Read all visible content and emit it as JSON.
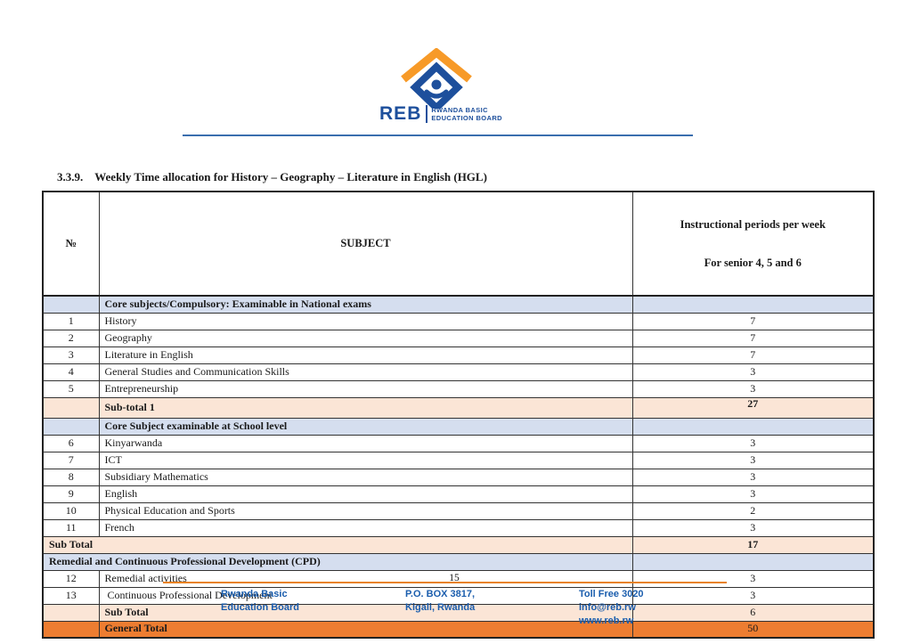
{
  "logo": {
    "acronym": "REB",
    "org_line1": "RWANDA BASIC",
    "org_line2": "EDUCATION BOARD",
    "colors": {
      "blue": "#1d4f9c",
      "orange": "#f79a28"
    }
  },
  "title": {
    "number": "3.3.9.",
    "text": "Weekly Time allocation for History – Geography – Literature in English (HGL)"
  },
  "table": {
    "headers": {
      "no": "№",
      "subject": "SUBJECT",
      "periods_line1": "Instructional periods per week",
      "periods_line2": "For senior 4, 5 and 6"
    },
    "rows": [
      {
        "kind": "section",
        "no": "",
        "subject": "Core subjects/Compulsory: Examinable in National exams",
        "value": ""
      },
      {
        "kind": "item",
        "no": "1",
        "subject": "History",
        "value": "7"
      },
      {
        "kind": "item",
        "no": "2",
        "subject": "Geography",
        "value": "7"
      },
      {
        "kind": "item",
        "no": "3",
        "subject": "Literature in English",
        "value": "7"
      },
      {
        "kind": "item",
        "no": "4",
        "subject": "General Studies and Communication Skills",
        "value": "3"
      },
      {
        "kind": "item",
        "no": "5",
        "subject": "Entrepreneurship",
        "value": "3"
      },
      {
        "kind": "subtotal1",
        "no": "",
        "subject": "Sub-total 1",
        "value": "27"
      },
      {
        "kind": "section",
        "no": "",
        "subject": "Core Subject examinable at School level",
        "value": ""
      },
      {
        "kind": "item",
        "no": "6",
        "subject": "Kinyarwanda",
        "value": "3"
      },
      {
        "kind": "item",
        "no": "7",
        "subject": "ICT",
        "value": "3"
      },
      {
        "kind": "item",
        "no": "8",
        "subject": "Subsidiary Mathematics",
        "value": "3"
      },
      {
        "kind": "item",
        "no": "9",
        "subject": "English",
        "value": "3"
      },
      {
        "kind": "item",
        "no": "10",
        "subject": "Physical Education and Sports",
        "value": "2"
      },
      {
        "kind": "item",
        "no": "11",
        "subject": "French",
        "value": "3"
      },
      {
        "kind": "subtotal-span",
        "no": "",
        "subject": "Sub Total",
        "value": "17"
      },
      {
        "kind": "section-span",
        "no": "",
        "subject": "Remedial and Continuous Professional Development (CPD)",
        "value": ""
      },
      {
        "kind": "item",
        "no": "12",
        "subject": "Remedial activities",
        "value": "3"
      },
      {
        "kind": "item",
        "no": "13",
        "subject": " Continuous Professional Development",
        "value": "3"
      },
      {
        "kind": "subtotal",
        "no": "",
        "subject": "Sub Total",
        "value": "6"
      },
      {
        "kind": "general",
        "no": "",
        "subject": "General Total",
        "value": "50"
      }
    ]
  },
  "footer": {
    "page_number": "15",
    "columns": [
      {
        "lines": [
          "Rwanda Basic",
          "Education Board"
        ]
      },
      {
        "lines": [
          "P.O. BOX 3817,",
          "Kigali, Rwanda"
        ]
      },
      {
        "lines": [
          "Toll Free 3020",
          "info@reb.rw",
          "www.reb.rw"
        ]
      }
    ]
  }
}
